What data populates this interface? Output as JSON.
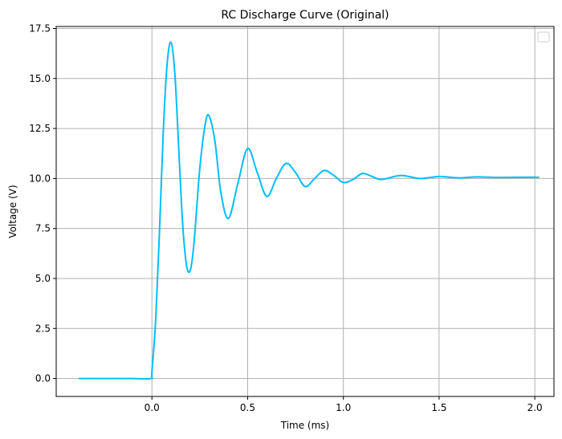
{
  "chart_data": {
    "type": "line",
    "title": "RC Discharge Curve (Original)",
    "xlabel": "Time (ms)",
    "ylabel": "Voltage (V)",
    "xlim": [
      -0.5,
      2.1
    ],
    "ylim": [
      -0.9,
      17.6
    ],
    "xticks": [
      0.0,
      0.5,
      1.0,
      1.5,
      2.0
    ],
    "xtick_labels": [
      "0.0",
      "0.5",
      "1.0",
      "1.5",
      "2.0"
    ],
    "yticks": [
      0.0,
      2.5,
      5.0,
      7.5,
      10.0,
      12.5,
      15.0,
      17.5
    ],
    "ytick_labels": [
      "0.0",
      "2.5",
      "5.0",
      "7.5",
      "10.0",
      "12.5",
      "15.0",
      "17.5"
    ],
    "grid": true,
    "legend": {
      "placement": "top-right",
      "entries": []
    },
    "series": [
      {
        "color": "#00bfff",
        "x": [
          -0.38,
          -0.3,
          -0.2,
          -0.1,
          -0.005,
          0.0,
          0.02,
          0.04,
          0.06,
          0.08,
          0.1,
          0.12,
          0.14,
          0.16,
          0.18,
          0.2,
          0.22,
          0.25,
          0.28,
          0.3,
          0.33,
          0.36,
          0.4,
          0.45,
          0.5,
          0.55,
          0.6,
          0.65,
          0.7,
          0.75,
          0.8,
          0.85,
          0.9,
          0.95,
          1.0,
          1.05,
          1.1,
          1.15,
          1.2,
          1.3,
          1.4,
          1.5,
          1.6,
          1.7,
          1.8,
          1.9,
          2.02
        ],
        "y": [
          0.0,
          0.0,
          0.0,
          0.0,
          0.0,
          0.35,
          3.0,
          7.5,
          12.5,
          15.8,
          16.8,
          15.2,
          11.5,
          7.8,
          5.7,
          5.4,
          6.8,
          10.5,
          12.8,
          13.1,
          11.8,
          9.3,
          8.0,
          9.8,
          11.5,
          10.3,
          9.1,
          10.0,
          10.75,
          10.3,
          9.6,
          10.0,
          10.4,
          10.15,
          9.8,
          9.95,
          10.25,
          10.1,
          9.95,
          10.15,
          10.0,
          10.1,
          10.03,
          10.08,
          10.05,
          10.06,
          10.06
        ]
      }
    ]
  }
}
